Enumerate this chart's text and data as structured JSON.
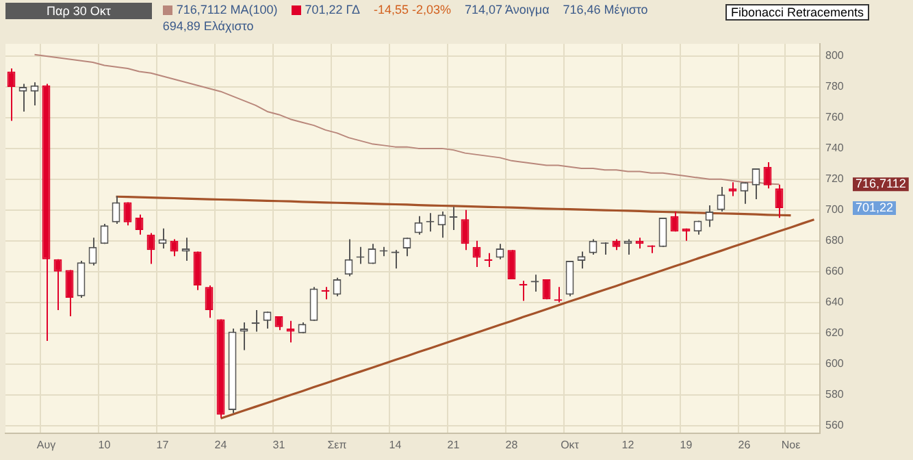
{
  "chart_data": {
    "type": "candlestick",
    "title": "Παρ 30 Οκτ",
    "categories": [
      null,
      null,
      null,
      "Αυγ",
      null,
      null,
      null,
      null,
      "10",
      null,
      null,
      null,
      null,
      "17",
      null,
      null,
      null,
      null,
      "24",
      null,
      null,
      null,
      null,
      "31",
      null,
      null,
      null,
      null,
      "Σεπ",
      null,
      null,
      null,
      null,
      "14",
      null,
      null,
      null,
      null,
      "21",
      null,
      null,
      null,
      null,
      "28",
      null,
      null,
      null,
      null,
      "Οκτ",
      null,
      null,
      null,
      null,
      "12",
      null,
      null,
      null,
      null,
      "19",
      null,
      null,
      null,
      null,
      "26",
      null,
      null,
      null,
      "Νοε",
      null,
      null
    ],
    "series": [
      {
        "type": "line",
        "name": "716,7112 ΜΑ(100)",
        "color": "#b9877b",
        "values": [
          null,
          null,
          801,
          800,
          799,
          798,
          797,
          796,
          794,
          793,
          792,
          790,
          789,
          787,
          785,
          783,
          781,
          779,
          777,
          774,
          771,
          768,
          764,
          762,
          759,
          757,
          755,
          752,
          750,
          747,
          745,
          743,
          742,
          741,
          741,
          740,
          740,
          740,
          739,
          737,
          736,
          735,
          734,
          732,
          731,
          730,
          729,
          729,
          728,
          727,
          727,
          726,
          726,
          725,
          725,
          724,
          724,
          723,
          722,
          721,
          720,
          720,
          719,
          718,
          718,
          717,
          716.7112,
          null,
          null,
          null
        ]
      },
      {
        "name": "701,22 ΓΔ",
        "color": "#e0002a",
        "colors": [
          "#e0002a",
          "#555555",
          "#555555",
          "#e0002a",
          "#e0002a",
          "#e0002a",
          "#555555",
          "#555555",
          "#555555",
          "#555555",
          "#e0002a",
          "#e0002a",
          "#e0002a",
          "#555555",
          "#e0002a",
          "#555555",
          "#e0002a",
          "#e0002a",
          "#e0002a",
          "#555555",
          "#555555",
          "#555555",
          "#555555",
          "#e0002a",
          "#e0002a",
          "#555555",
          "#555555",
          "#e0002a",
          "#555555",
          "#555555",
          "#555555",
          "#555555",
          "#555555",
          "#555555",
          "#555555",
          "#555555",
          "#555555",
          "#555555",
          "#555555",
          "#e0002a",
          "#e0002a",
          "#e0002a",
          "#555555",
          "#e0002a",
          "#e0002a",
          "#555555",
          "#e0002a",
          "#e0002a",
          "#555555",
          "#555555",
          "#555555",
          "#555555",
          "#e0002a",
          "#555555",
          "#e0002a",
          "#e0002a",
          "#555555",
          "#e0002a",
          "#e0002a",
          "#555555",
          "#555555",
          "#555555",
          "#e0002a",
          "#555555",
          "#555555",
          "#e0002a",
          "#e0002a",
          null,
          null,
          null
        ],
        "ohlc": [
          [
            790,
            792,
            758,
            780
          ],
          [
            777,
            782,
            764,
            780
          ],
          [
            777,
            783,
            768,
            781
          ],
          [
            781,
            782,
            615,
            668
          ],
          [
            668,
            668,
            635,
            660
          ],
          [
            661,
            661,
            631,
            643
          ],
          [
            644,
            667,
            643,
            666
          ],
          [
            665,
            682,
            664,
            676
          ],
          [
            678,
            691,
            678,
            690
          ],
          [
            692,
            709,
            691,
            705
          ],
          [
            705,
            705,
            690,
            692
          ],
          [
            695,
            697,
            684,
            687
          ],
          [
            684,
            685,
            665,
            674
          ],
          [
            678,
            688,
            675,
            681
          ],
          [
            680,
            681,
            670,
            673
          ],
          [
            673,
            682,
            667,
            675
          ],
          [
            673,
            673,
            648,
            651
          ],
          [
            650,
            651,
            630,
            635
          ],
          [
            629,
            629,
            565,
            567
          ],
          [
            570,
            623,
            568,
            621
          ],
          [
            621,
            627,
            609,
            623
          ],
          [
            626,
            635,
            621,
            627
          ],
          [
            628,
            634,
            623,
            634
          ],
          [
            631,
            631,
            622,
            624
          ],
          [
            623,
            628,
            614,
            621
          ],
          [
            620,
            627,
            620,
            626
          ],
          [
            628,
            650,
            628,
            649
          ],
          [
            648,
            650,
            642,
            647
          ],
          [
            645,
            656,
            644,
            655
          ],
          [
            658,
            681,
            657,
            668
          ],
          [
            669,
            676,
            665,
            669
          ],
          [
            665,
            678,
            665,
            675
          ],
          [
            673,
            676,
            670,
            673
          ],
          [
            672,
            674,
            662,
            673
          ],
          [
            675,
            682,
            670,
            682
          ],
          [
            685,
            696,
            684,
            692
          ],
          [
            692,
            698,
            686,
            692
          ],
          [
            690,
            699,
            682,
            697
          ],
          [
            695,
            702,
            687,
            695
          ],
          [
            694,
            700,
            674,
            678
          ],
          [
            676,
            680,
            663,
            669
          ],
          [
            668,
            672,
            663,
            667
          ],
          [
            669,
            678,
            668,
            675
          ],
          [
            674,
            674,
            655,
            655
          ],
          [
            652,
            654,
            641,
            651
          ],
          [
            653,
            658,
            647,
            654
          ],
          [
            655,
            655,
            642,
            642
          ],
          [
            642,
            650,
            640,
            641
          ],
          [
            645,
            667,
            644,
            667
          ],
          [
            667,
            673,
            662,
            670
          ],
          [
            672,
            681,
            671,
            680
          ],
          [
            678,
            679,
            671,
            678
          ],
          [
            680,
            681,
            674,
            676
          ],
          [
            678,
            681,
            671,
            680
          ],
          [
            680,
            682,
            675,
            678
          ],
          [
            677,
            677,
            672,
            676
          ],
          [
            676,
            695,
            676,
            695
          ],
          [
            696,
            699,
            686,
            686
          ],
          [
            688,
            688,
            680,
            686
          ],
          [
            686,
            693,
            684,
            693
          ],
          [
            693,
            703,
            689,
            699
          ],
          [
            700,
            715,
            699,
            710
          ],
          [
            714,
            718,
            709,
            712
          ],
          [
            712,
            718,
            704,
            718
          ],
          [
            716,
            727,
            707,
            727
          ],
          [
            728,
            731,
            714,
            716
          ],
          [
            714.07,
            716.46,
            694.89,
            701.22
          ],
          null,
          null,
          null
        ]
      },
      {
        "type": "line",
        "color": "#a5532a",
        "values": [
          null,
          null,
          null,
          null,
          null,
          null,
          null,
          null,
          null,
          708.7,
          708.5,
          708.3,
          708.1,
          707.9,
          707.7,
          707.4,
          707.2,
          707.0,
          706.8,
          706.6,
          706.4,
          706.2,
          706.0,
          705.8,
          705.6,
          705.3,
          705.1,
          704.9,
          704.7,
          704.5,
          704.3,
          704.1,
          703.9,
          703.7,
          703.5,
          703.2,
          703.0,
          702.8,
          702.6,
          702.4,
          702.2,
          702.0,
          701.8,
          701.6,
          701.4,
          701.1,
          700.9,
          700.7,
          700.5,
          700.3,
          700.1,
          699.9,
          699.7,
          699.5,
          699.3,
          699.0,
          698.8,
          698.6,
          698.4,
          698.2,
          698.0,
          697.8,
          697.6,
          697.4,
          697.2,
          696.9,
          696.7,
          696.5,
          null,
          null
        ]
      },
      {
        "type": "line",
        "color": "#a5532a",
        "values": [
          null,
          null,
          null,
          null,
          null,
          null,
          null,
          null,
          null,
          null,
          null,
          null,
          null,
          null,
          null,
          null,
          null,
          null,
          564.6,
          567.1,
          569.7,
          572.2,
          574.7,
          577.3,
          579.8,
          582.3,
          584.9,
          587.4,
          589.9,
          592.5,
          595.0,
          597.5,
          600.1,
          602.6,
          605.1,
          607.7,
          610.2,
          612.7,
          615.3,
          617.8,
          620.3,
          622.9,
          625.4,
          627.9,
          630.5,
          633.0,
          635.5,
          638.1,
          640.6,
          643.1,
          645.7,
          648.2,
          650.7,
          653.3,
          655.8,
          658.3,
          660.9,
          663.4,
          665.9,
          668.5,
          671.0,
          673.5,
          676.1,
          678.6,
          681.1,
          683.7,
          686.2,
          688.7,
          691.3,
          693.8
        ]
      }
    ],
    "ylim": [
      555,
      808
    ],
    "yticks": [
      560,
      580,
      600,
      620,
      640,
      660,
      680,
      700,
      720,
      740,
      760,
      780,
      800
    ],
    "grid": true,
    "legend": "top left",
    "annotations": [
      "716,7112",
      "701,22",
      "-14,55 -2,03%",
      "714,07 Άνοιγμα",
      "716,46 Μέγιστο",
      "694,89 Ελάχιστο",
      "Fibonacci Retracements"
    ]
  }
}
